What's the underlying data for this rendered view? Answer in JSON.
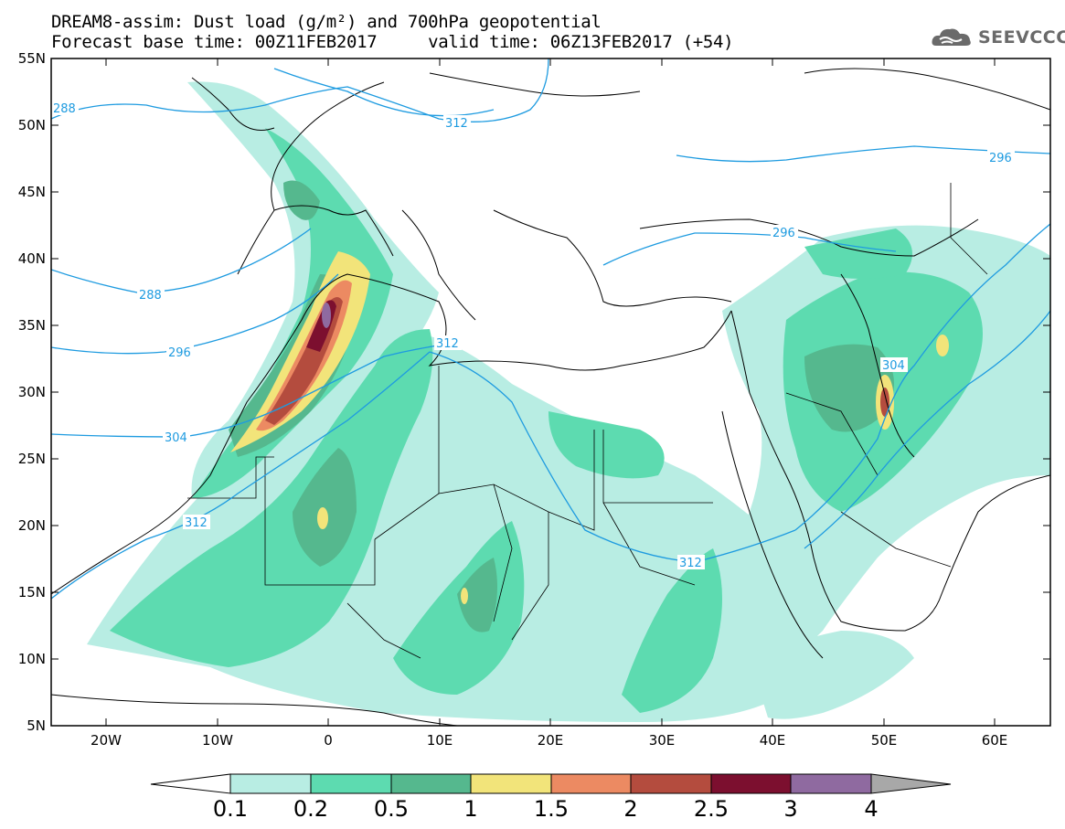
{
  "header": {
    "line1": "DREAM8-assim: Dust load (g/m²) and 700hPa geopotential",
    "line2": "Forecast base time: 00Z11FEB2017     valid time: 06Z13FEB2017 (+54)"
  },
  "logo": {
    "text": "SEEVCCC",
    "icon": "cloud-logo-icon"
  },
  "map": {
    "lat_labels": [
      "55N",
      "50N",
      "45N",
      "40N",
      "35N",
      "30N",
      "25N",
      "20N",
      "15N",
      "10N",
      "5N"
    ],
    "lon_labels": [
      "20W",
      "10W",
      "0",
      "10E",
      "20E",
      "30E",
      "40E",
      "50E",
      "60E"
    ],
    "contour_labels": [
      "288",
      "312",
      "296",
      "296",
      "288",
      "312",
      "296",
      "304",
      "304",
      "312",
      "312"
    ]
  },
  "colorbar": {
    "ticks": [
      "0.1",
      "0.2",
      "0.5",
      "1",
      "1.5",
      "2",
      "2.5",
      "3",
      "4"
    ],
    "colors": [
      "#b8ede3",
      "#5ddbb0",
      "#55b88e",
      "#f2e47a",
      "#ec8a62",
      "#b44c3e",
      "#7c0f2f",
      "#8f6aa0"
    ],
    "under_color": "#ffffff",
    "over_color": "#a8a8a8"
  }
}
